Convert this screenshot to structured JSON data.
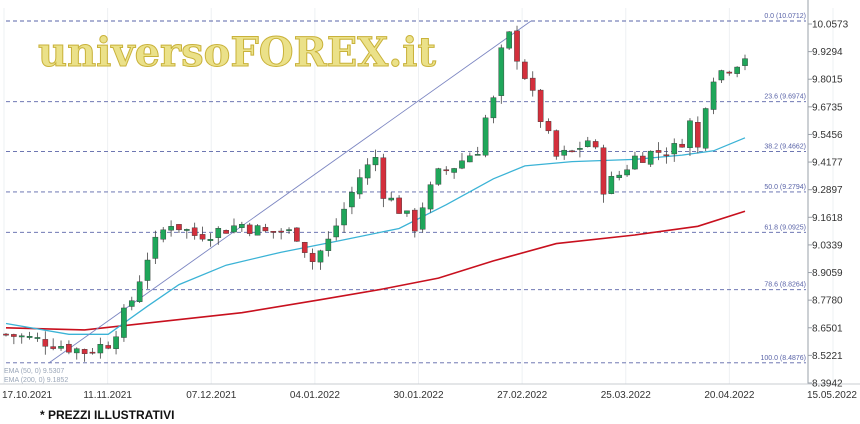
{
  "brand": "universoFOREX.it",
  "footnote": "* PREZZI ILLUSTRATIVI",
  "colors": {
    "bull": "#1fa65a",
    "bear": "#d32f3c",
    "ema_fast": "#3bb3d6",
    "ema_slow": "#c8101e",
    "fib": "#5a64a8",
    "trendline": "#7c86c2"
  },
  "chart_data": {
    "type": "candlestick",
    "x_ticks": [
      "17.10.2021",
      "11.11.2021",
      "07.12.2021",
      "04.01.2022",
      "30.01.2022",
      "27.02.2022",
      "25.03.2022",
      "20.04.2022",
      "15.05.2022"
    ],
    "y_ticks": [
      "10.0573",
      "9.9294",
      "9.8015",
      "9.6735",
      "9.5456",
      "9.4177",
      "9.2897",
      "9.1618",
      "9.0339",
      "8.9059",
      "8.7780",
      "8.6501",
      "8.5221",
      "8.3942"
    ],
    "ylim": [
      8.3942,
      10.0573
    ],
    "fib_levels": [
      {
        "label": "0.0 (10.0712)",
        "value": 10.0712
      },
      {
        "label": "23.6 (9.6974)",
        "value": 9.6974
      },
      {
        "label": "38.2 (9.4662)",
        "value": 9.4662
      },
      {
        "label": "50.0 (9.2794)",
        "value": 9.2794
      },
      {
        "label": "61.8 (9.0925)",
        "value": 9.0925
      },
      {
        "label": "78.6 (8.8264)",
        "value": 8.8264
      },
      {
        "label": "100.0 (8.4876)",
        "value": 8.4876
      }
    ],
    "trendline": {
      "from": 8.4876,
      "to": 10.0712
    },
    "legend": [
      "EMA (50, 0) 9.5307",
      "EMA (200, 0) 9.1852"
    ],
    "series": [
      {
        "name": "EMA (50, 0)",
        "start": 8.67,
        "end": 9.53
      },
      {
        "name": "EMA (200, 0)",
        "start": 8.65,
        "end": 9.19
      }
    ],
    "candles": {
      "count": 95,
      "start": 8.62,
      "low_point": 8.5,
      "peak": 10.06,
      "last_close": 9.91
    }
  }
}
